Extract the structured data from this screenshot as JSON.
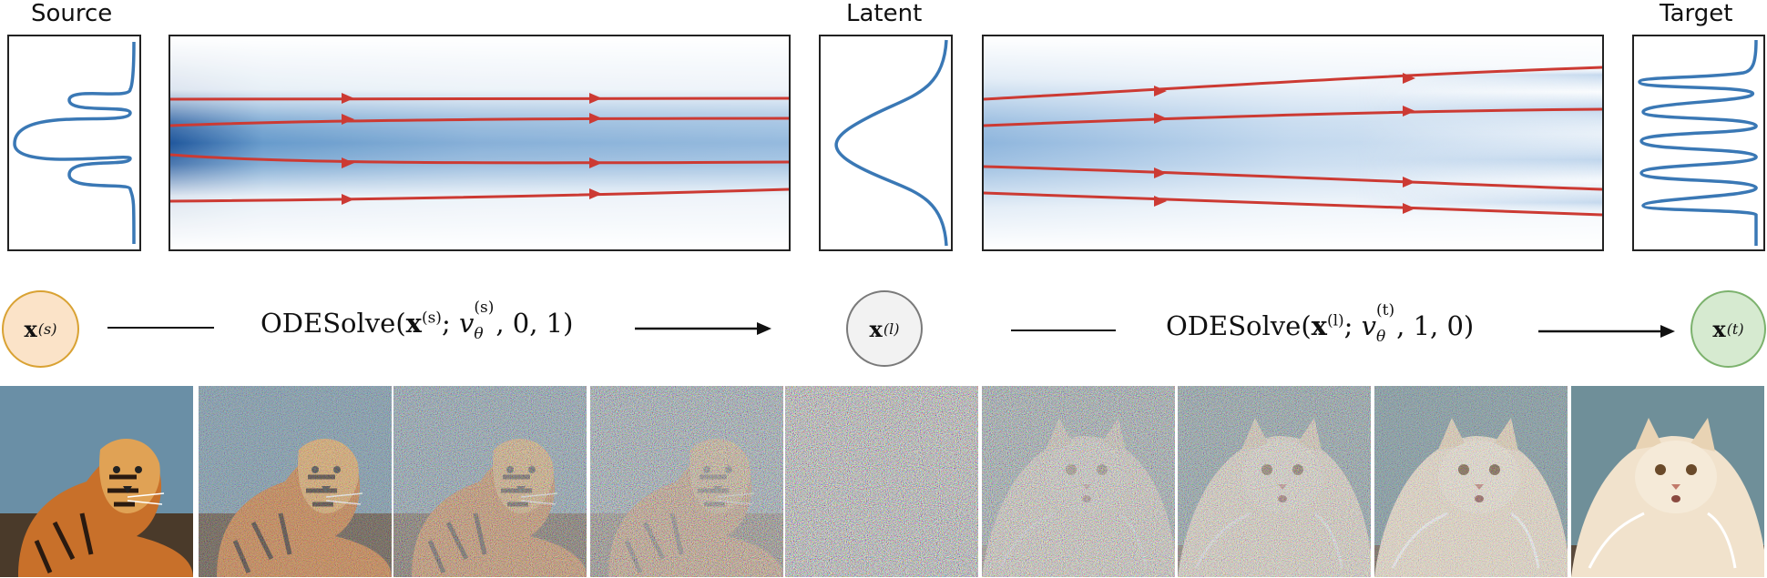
{
  "labels": {
    "source": "Source",
    "latent": "Latent",
    "target": "Target"
  },
  "nodes": {
    "source": {
      "symbol": "x",
      "superscript": "(s)",
      "fill": "#fbe3c8",
      "stroke": "#d9a233"
    },
    "latent": {
      "symbol": "x",
      "superscript": "(l)",
      "fill": "#f2f2f2",
      "stroke": "#7a7a7a"
    },
    "target": {
      "symbol": "x",
      "superscript": "(t)",
      "fill": "#d6ead0",
      "stroke": "#7cb26d"
    }
  },
  "equations": {
    "forward": {
      "prefix": "ODESolve(",
      "var": "x",
      "var_sup": "(s)",
      "sep": "; ",
      "field": "v",
      "field_sup": "(s)",
      "field_sub": "θ",
      "args": ", 0, 1)"
    },
    "backward": {
      "prefix": "ODESolve(",
      "var": "x",
      "var_sup": "(l)",
      "sep": "; ",
      "field": "v",
      "field_sup": "(t)",
      "field_sub": "θ",
      "args": ", 1, 0)"
    }
  },
  "colors": {
    "density_curve": "#3a78b5",
    "trajectory": "#cc3a33",
    "flow_dark": "#2a68ad",
    "frame": "#222222"
  },
  "images": [
    {
      "name": "tiger-source-image",
      "noise": 0.0,
      "subject": "tiger"
    },
    {
      "name": "tiger-noisy-image-1",
      "noise": 0.45,
      "subject": "tiger"
    },
    {
      "name": "tiger-noisy-image-2",
      "noise": 0.65,
      "subject": "tiger"
    },
    {
      "name": "tiger-noisy-image-3",
      "noise": 0.8,
      "subject": "tiger"
    },
    {
      "name": "latent-noise-image",
      "noise": 1.0,
      "subject": "noise"
    },
    {
      "name": "cat-noisy-image-1",
      "noise": 0.8,
      "subject": "cat"
    },
    {
      "name": "cat-noisy-image-2",
      "noise": 0.65,
      "subject": "cat"
    },
    {
      "name": "cat-noisy-image-3",
      "noise": 0.45,
      "subject": "cat"
    },
    {
      "name": "cat-target-image",
      "noise": 0.0,
      "subject": "cat"
    }
  ]
}
